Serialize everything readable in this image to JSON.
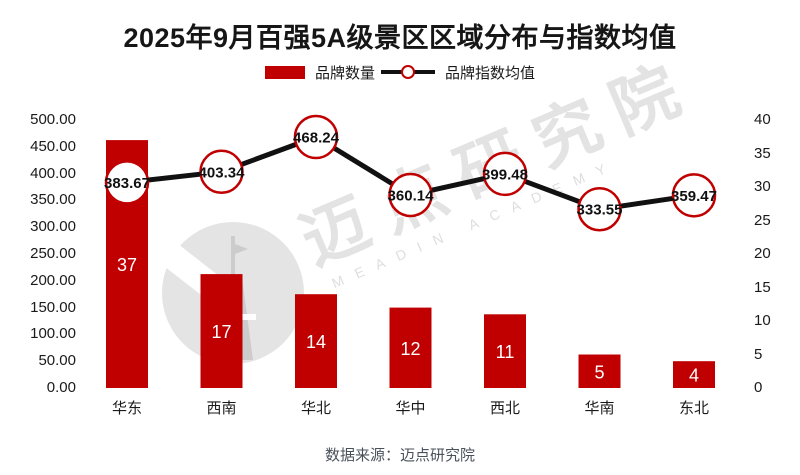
{
  "title": "2025年9月百强5A级景区区域分布与指数均值",
  "legend": [
    {
      "label": "品牌数量",
      "symbol": "red-bar-swatch"
    },
    {
      "label": "品牌指数均值",
      "symbol": "black-line-with-circle-marker"
    }
  ],
  "footer": {
    "source": "数据来源：迈点研究院"
  },
  "watermark": {
    "cjk": "迈点研究院",
    "latin": "MEADIN ACADEMY",
    "logo": "tower-logo"
  },
  "colors": {
    "bar": "#c00000",
    "line": "#111111",
    "marker_fill": "#ffffff",
    "marker_border": "#c00000",
    "bar_label": "#ffffff",
    "point_label": "#111111",
    "axis_text": "#1a1a1a",
    "axis_line": "#d9d9d9",
    "title": "#161616",
    "footer_text": "#49515b",
    "watermark": "#e3e3e3"
  },
  "chart_data": {
    "type": "bar+line combo",
    "categories": [
      "华东",
      "西南",
      "华北",
      "华中",
      "西北",
      "华南",
      "东北"
    ],
    "series": [
      {
        "name": "品牌数量",
        "type": "bar",
        "axis": "right",
        "values": [
          37,
          17,
          14,
          12,
          11,
          5,
          4
        ],
        "labels": [
          "37",
          "17",
          "14",
          "12",
          "11",
          "5",
          "4"
        ]
      },
      {
        "name": "品牌指数均值",
        "type": "line",
        "axis": "left",
        "values": [
          383.67,
          403.34,
          468.24,
          360.14,
          399.48,
          333.55,
          359.47
        ],
        "labels": [
          "383.67",
          "403.34",
          "468.24",
          "360.14",
          "399.48",
          "333.55",
          "359.47"
        ]
      }
    ],
    "left_axis": {
      "min": 0,
      "max": 500,
      "ticks": [
        "500.00",
        "450.00",
        "400.00",
        "350.00",
        "300.00",
        "250.00",
        "200.00",
        "150.00",
        "100.00",
        "50.00",
        "0.00"
      ]
    },
    "right_axis": {
      "min": 0,
      "max": 40,
      "ticks": [
        "40",
        "35",
        "30",
        "25",
        "20",
        "15",
        "10",
        "5",
        "0"
      ]
    },
    "grid": false,
    "legend_position": "top"
  }
}
